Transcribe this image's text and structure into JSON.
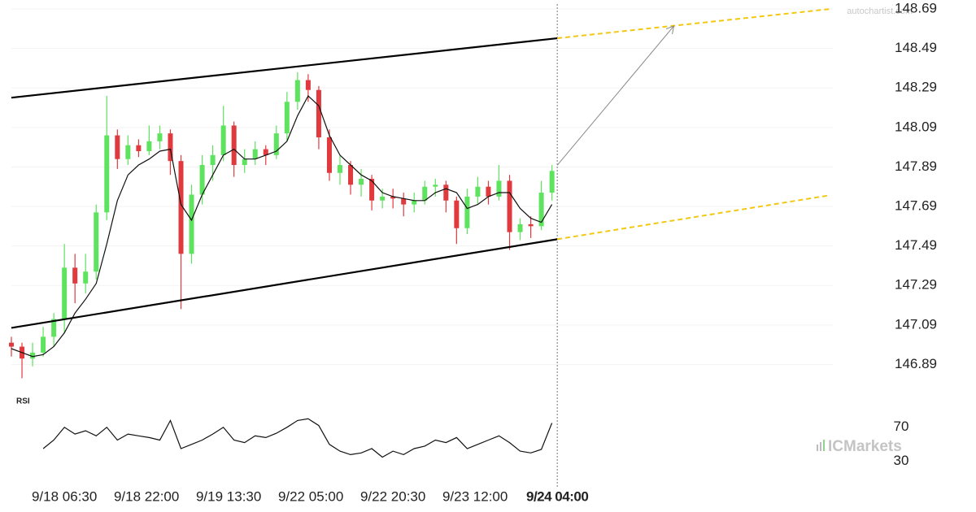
{
  "chart_data": {
    "type": "candlestick",
    "source": "autochartist.com",
    "brand": "ICMarkets",
    "up_color": "#5ee35e",
    "down_color": "#e03a3e",
    "grid": true,
    "xlim": [
      -20,
      290
    ],
    "ylim": [
      146.76,
      148.715
    ],
    "yticks": [
      146.89,
      147.09,
      147.29,
      147.49,
      147.69,
      147.89,
      148.09,
      148.29,
      148.49,
      148.69
    ],
    "xticks": [
      {
        "value": 0,
        "label": "9/18 06:30"
      },
      {
        "value": 31,
        "label": "9/18 22:00"
      },
      {
        "value": 62,
        "label": "9/19 13:30"
      },
      {
        "value": 93,
        "label": "9/22 05:00"
      },
      {
        "value": 124,
        "label": "9/22 20:30"
      },
      {
        "value": 155,
        "label": "9/23 12:00"
      },
      {
        "value": 186,
        "label": "9/24 04:00"
      }
    ],
    "current_x": 186,
    "x": [
      -20,
      -16,
      -12,
      -8,
      -4,
      0,
      4,
      8,
      12,
      16,
      20,
      24,
      28,
      32,
      36,
      40,
      44,
      48,
      52,
      56,
      60,
      64,
      68,
      72,
      76,
      80,
      84,
      88,
      92,
      96,
      100,
      104,
      108,
      112,
      116,
      120,
      124,
      128,
      132,
      136,
      140,
      144,
      148,
      152,
      156,
      160,
      164,
      168,
      172,
      176,
      180,
      184
    ],
    "open": [
      147.0,
      146.98,
      146.92,
      146.95,
      147.03,
      147.12,
      147.38,
      147.3,
      147.36,
      147.66,
      148.05,
      147.93,
      148.0,
      147.97,
      148.02,
      148.06,
      147.92,
      147.45,
      147.75,
      147.9,
      147.95,
      148.1,
      147.9,
      147.93,
      147.98,
      147.95,
      148.06,
      148.22,
      148.33,
      148.28,
      148.04,
      147.86,
      147.9,
      147.8,
      147.83,
      147.72,
      147.74,
      147.73,
      147.7,
      147.72,
      147.79,
      147.8,
      147.72,
      147.58,
      147.74,
      147.79,
      147.74,
      147.82,
      147.56,
      147.6,
      147.59,
      147.76
    ],
    "high": [
      147.03,
      147.0,
      147.0,
      147.08,
      147.15,
      147.5,
      147.45,
      147.45,
      147.7,
      148.25,
      148.08,
      148.05,
      148.03,
      148.1,
      148.1,
      148.08,
      147.95,
      147.8,
      147.95,
      148.0,
      148.2,
      148.12,
      147.98,
      148.02,
      148.0,
      148.1,
      148.27,
      148.37,
      148.36,
      148.3,
      148.08,
      147.95,
      147.92,
      147.88,
      147.85,
      147.78,
      147.78,
      147.76,
      147.76,
      147.82,
      147.83,
      147.82,
      147.74,
      147.78,
      147.84,
      147.82,
      147.9,
      147.85,
      147.63,
      147.64,
      147.82,
      147.9
    ],
    "low": [
      146.93,
      146.82,
      146.88,
      146.93,
      146.98,
      147.05,
      147.2,
      147.25,
      147.32,
      147.62,
      147.88,
      147.9,
      147.94,
      147.95,
      147.98,
      147.85,
      147.17,
      147.4,
      147.7,
      147.82,
      147.92,
      147.84,
      147.86,
      147.9,
      147.9,
      147.93,
      148.02,
      148.18,
      148.22,
      147.98,
      147.82,
      147.8,
      147.75,
      147.74,
      147.67,
      147.68,
      147.68,
      147.64,
      147.66,
      147.7,
      147.74,
      147.66,
      147.5,
      147.55,
      147.7,
      147.7,
      147.72,
      147.47,
      147.52,
      147.53,
      147.57,
      147.72
    ],
    "close": [
      146.98,
      146.92,
      146.95,
      147.03,
      147.12,
      147.38,
      147.3,
      147.36,
      147.66,
      148.05,
      147.93,
      148.0,
      147.97,
      148.02,
      148.06,
      147.92,
      147.45,
      147.75,
      147.9,
      147.95,
      148.1,
      147.9,
      147.93,
      147.98,
      147.95,
      148.06,
      148.22,
      148.33,
      148.28,
      148.04,
      147.86,
      147.9,
      147.8,
      147.83,
      147.72,
      147.74,
      147.73,
      147.7,
      147.72,
      147.79,
      147.8,
      147.72,
      147.58,
      147.74,
      147.79,
      147.74,
      147.82,
      147.56,
      147.6,
      147.59,
      147.76,
      147.87
    ],
    "ma": {
      "color": "#111111",
      "values": [
        146.97,
        146.95,
        146.93,
        146.94,
        146.98,
        147.05,
        147.15,
        147.22,
        147.3,
        147.5,
        147.72,
        147.85,
        147.9,
        147.93,
        147.97,
        147.98,
        147.7,
        147.62,
        147.75,
        147.85,
        147.95,
        147.98,
        147.93,
        147.93,
        147.95,
        147.97,
        148.02,
        148.15,
        148.25,
        148.2,
        148.05,
        147.95,
        147.9,
        147.85,
        147.82,
        147.76,
        147.74,
        147.73,
        147.72,
        147.72,
        147.76,
        147.78,
        147.76,
        147.68,
        147.7,
        147.74,
        147.76,
        147.76,
        147.68,
        147.63,
        147.61,
        147.7
      ]
    },
    "upper_channel": {
      "color": "#000000",
      "x": [
        -20,
        186
      ],
      "values": [
        148.241,
        148.542
      ]
    },
    "lower_channel": {
      "color": "#000000",
      "x": [
        -20,
        186
      ],
      "values": [
        147.075,
        147.524
      ]
    },
    "upper_projection": {
      "color": "#f2c811",
      "x": [
        186,
        289
      ],
      "values": [
        148.542,
        148.69
      ]
    },
    "lower_projection": {
      "color": "#f2c811",
      "x": [
        186,
        289
      ],
      "values": [
        147.524,
        147.747
      ]
    },
    "arrow": {
      "color": "#888888",
      "x": [
        186,
        230
      ],
      "values": [
        147.899,
        148.604
      ]
    },
    "rsi": {
      "label": "RSI",
      "color": "#111111",
      "ylim": [
        5,
        105
      ],
      "yticks": [
        30,
        70
      ],
      "values": [
        null,
        null,
        null,
        45,
        55,
        70,
        62,
        66,
        60,
        70,
        55,
        62,
        60,
        58,
        55,
        78,
        45,
        50,
        55,
        62,
        70,
        55,
        52,
        60,
        58,
        63,
        70,
        78,
        80,
        72,
        50,
        42,
        38,
        40,
        45,
        35,
        42,
        38,
        45,
        48,
        55,
        52,
        58,
        45,
        50,
        55,
        60,
        52,
        42,
        40,
        44,
        75
      ]
    }
  }
}
